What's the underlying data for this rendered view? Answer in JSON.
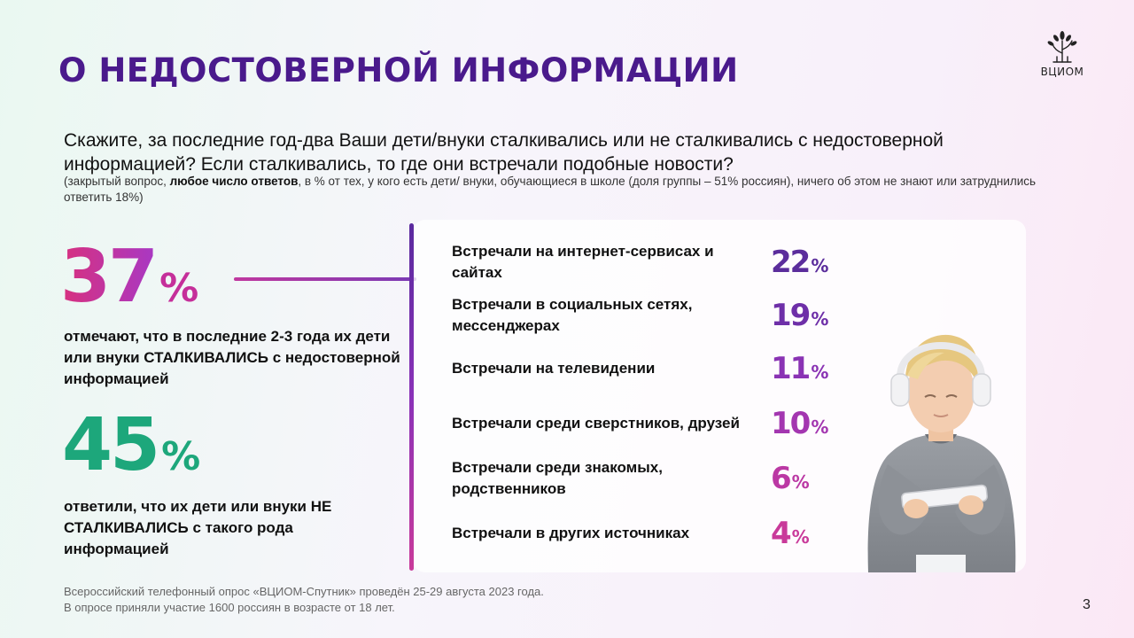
{
  "title": "О НЕДОСТОВЕРНОЙ ИНФОРМАЦИИ",
  "logo": {
    "text": "ВЦИОМ",
    "icon": "tree-logo-icon"
  },
  "question": "Скажите, за последние год-два Ваши дети/внуки сталкивались или не сталкивались с недостоверной информацией? Если сталкивались, то где они встречали подобные новости?",
  "note": {
    "before": "(закрытый вопрос, ",
    "bold": "любое число ответов",
    "after": ", в % от тех, у кого есть дети/ внуки, обучающиеся в школе (доля группы – 51% россиян), ничего об этом не знают или затруднились ответить 18%)"
  },
  "stats": [
    {
      "value": "37",
      "unit": "%",
      "color": "#c52f9a",
      "description": "отмечают, что в последние 2-3 года их дети или внуки СТАЛКИВАЛИСЬ с недостоверной информацией"
    },
    {
      "value": "45",
      "unit": "%",
      "color": "#1da77b",
      "description": "ответили, что их дети или внуки НЕ СТАЛКИВАЛИСЬ с такого рода информацией"
    }
  ],
  "sources": [
    {
      "label": "Встречали на интернет-сервисах и сайтах",
      "value": "22",
      "unit": "%",
      "color": "#5b2d9c"
    },
    {
      "label": "Встречали в социальных сетях, мессенджерах",
      "value": "19",
      "unit": "%",
      "color": "#6e2fa8"
    },
    {
      "label": "Встречали на телевидении",
      "value": "11",
      "unit": "%",
      "color": "#8a33b4"
    },
    {
      "label": "Встречали среди сверстников, друзей",
      "value": "10",
      "unit": "%",
      "color": "#a336b0"
    },
    {
      "label": "Встречали среди знакомых, родственников",
      "value": "6",
      "unit": "%",
      "color": "#bb38a4"
    },
    {
      "label": "Встречали в других источниках",
      "value": "4",
      "unit": "%",
      "color": "#c93a9a"
    }
  ],
  "footer": {
    "line1": "Всероссийский телефонный опрос «ВЦИОМ-Спутник» проведён 25-29 августа 2023 года.",
    "line2": "В опросе приняли участие 1600 россиян в возрасте от 18 лет."
  },
  "page_number": "3"
}
